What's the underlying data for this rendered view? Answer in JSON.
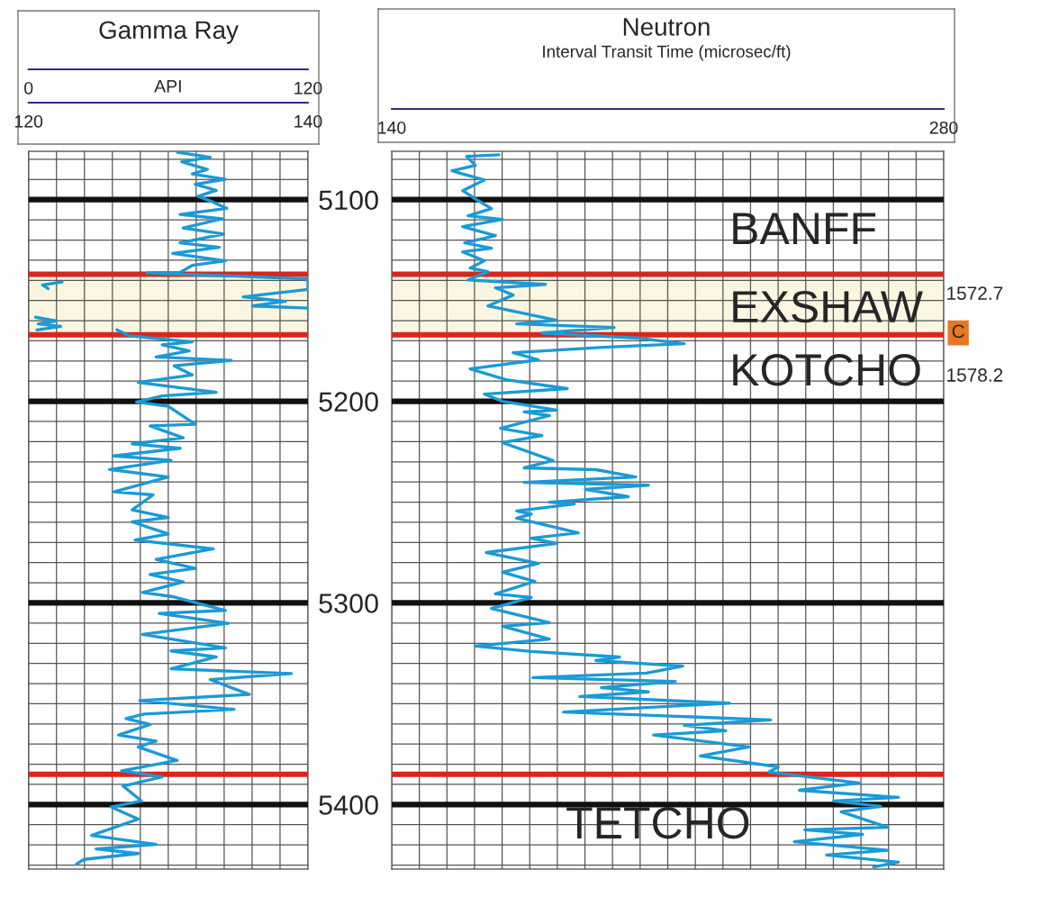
{
  "chart_data": [
    {
      "type": "line",
      "title": "Gamma Ray",
      "xlabel": "API",
      "xlim": [
        0,
        120
      ],
      "xticks": [
        0,
        {
          "value": 12,
          "label": null
        },
        {
          "value": 24,
          "label": null
        },
        {
          "value": 36,
          "label": null
        },
        {
          "value": 48,
          "label": null
        },
        {
          "value": 60,
          "label": null
        },
        {
          "value": 72,
          "label": null
        },
        {
          "value": 84,
          "label": null
        },
        {
          "value": 96,
          "label": null
        },
        {
          "value": 108,
          "label": null
        },
        120
      ],
      "x2lim": [
        120,
        140
      ],
      "x2ticks": [
        120,
        140
      ],
      "ylim": [
        5432,
        5076
      ],
      "yticks": [
        {
          "value": 5080,
          "label": null
        },
        {
          "value": 5090,
          "label": null
        },
        5100,
        {
          "value": 5110,
          "label": null
        },
        {
          "value": 5120,
          "label": null
        },
        {
          "value": 5130,
          "label": null
        },
        {
          "value": 5140,
          "label": null
        },
        {
          "value": 5150,
          "label": null
        },
        {
          "value": 5160,
          "label": null
        },
        {
          "value": 5170,
          "label": null
        },
        {
          "value": 5180,
          "label": null
        },
        {
          "value": 5190,
          "label": null
        },
        5200,
        {
          "value": 5210,
          "label": null
        },
        {
          "value": 5220,
          "label": null
        },
        {
          "value": 5230,
          "label": null
        },
        {
          "value": 5240,
          "label": null
        },
        {
          "value": 5250,
          "label": null
        },
        {
          "value": 5260,
          "label": null
        },
        {
          "value": 5270,
          "label": null
        },
        {
          "value": 5280,
          "label": null
        },
        {
          "value": 5290,
          "label": null
        },
        5300,
        {
          "value": 5310,
          "label": null
        },
        {
          "value": 5320,
          "label": null
        },
        {
          "value": 5330,
          "label": null
        },
        {
          "value": 5340,
          "label": null
        },
        {
          "value": 5350,
          "label": null
        },
        {
          "value": 5360,
          "label": null
        },
        {
          "value": 5370,
          "label": null
        },
        {
          "value": 5380,
          "label": null
        },
        {
          "value": 5390,
          "label": null
        },
        5400,
        {
          "value": 5410,
          "label": null
        },
        {
          "value": 5420,
          "label": null
        },
        {
          "value": 5430,
          "label": null
        }
      ],
      "grid": true,
      "line_style": "solid",
      "ref_lines": [
        {
          "axis": "y",
          "value": 5137,
          "color": "#d9261c"
        },
        {
          "axis": "y",
          "value": 5167,
          "color": "#d9261c"
        },
        {
          "axis": "y",
          "value": 5385,
          "color": "#d9261c"
        }
      ],
      "bands": [
        {
          "axis": "y",
          "from": 5137,
          "to": 5167,
          "color": "#faf6e1"
        }
      ],
      "series": [
        {
          "color": "#1a9ad6",
          "x": [
            64,
            78,
            65.8,
            76.8,
            70.3,
            84.5,
            71.6,
            80.6,
            72.9,
            78,
            85.1,
            65.1,
            83.2,
            66.4,
            83.8,
            65.1,
            81.9,
            61.9,
            84.5,
            70.3,
            65.1,
            50.9,
            120,
            120,
            92.2,
            110.3,
            96.1,
            120,
            null,
            38,
            43.2,
            70.3,
            57.4,
            69,
            54.8,
            87.1,
            62.5,
            70.3,
            47.1,
            80.6,
            57.4,
            46.4,
            60,
            71.6,
            52.2,
            66.4,
            44.5,
            65.1,
            36.7,
            61.2,
            34.8,
            60,
            36.7,
            53.5,
            44.5,
            60,
            44.5,
            60,
            45.8,
            79.3,
            54.8,
            71.6,
            52.2,
            66.4,
            49,
            62.5,
            84.5,
            56.1,
            85.8,
            49,
            84.5,
            61.2,
            80.6,
            61.2,
            112.9,
            78,
            94.8,
            47.7,
            88.3,
            49.6,
            41.9,
            52.2,
            38.7,
            54.8,
            47.1,
            63.8,
            40,
            57.4,
            40.6,
            48.4,
            35.4,
            47.1,
            27.1,
            54.8,
            29,
            47.1,
            23.8,
            20.6
          ],
          "values": [
            5076.5,
            5079,
            5081.2,
            5085,
            5087.2,
            5089.9,
            5092.4,
            5095.4,
            5098.3,
            5100.6,
            5104.3,
            5107.3,
            5109.5,
            5114,
            5117,
            5121.4,
            5123.6,
            5126.6,
            5130.3,
            5132.6,
            5136,
            5136.3,
            5139.3,
            5144.5,
            5148.2,
            5150.4,
            5152.7,
            5153.8,
            null,
            5164.6,
            5167.5,
            5170.5,
            5172,
            5175,
            5178,
            5179.7,
            5182.4,
            5186.9,
            5190.6,
            5195.5,
            5197.3,
            5200.3,
            5202.5,
            5211.4,
            5212.2,
            5218.1,
            5221.1,
            5223.3,
            5227.1,
            5229.3,
            5233.8,
            5237.5,
            5244.9,
            5246.4,
            5253.8,
            5257.6,
            5259.8,
            5265.8,
            5268.8,
            5273.2,
            5278.4,
            5282.9,
            5285.9,
            5289.6,
            5294.8,
            5297,
            5303.7,
            5305.2,
            5310.1,
            5315.6,
            5322.3,
            5323.8,
            5326.8,
            5332.7,
            5335,
            5338,
            5345.4,
            5348.4,
            5352.8,
            5355.1,
            5357.3,
            5360.3,
            5365.5,
            5368.5,
            5371.4,
            5378.1,
            5383.3,
            5386.3,
            5390.8,
            5398.2,
            5401.2,
            5407.2,
            5415.3,
            5419.8,
            5422,
            5424.3,
            5427.2,
            5429.5
          ]
        },
        {
          "color": "#1a9ad6",
          "axis": "x2",
          "x": [
            122.4,
            121,
            121.4,
            null,
            120.5,
            122,
            120.7,
            122.3,
            120.6
          ],
          "values": [
            5140.8,
            5142.3,
            5144.1,
            null,
            5158.3,
            5160.1,
            5161.6,
            5162.8,
            5164.6
          ]
        }
      ]
    },
    {
      "type": "line",
      "title": "Neutron",
      "subtitle": "Interval Transit Time (microsec/ft)",
      "xlim": [
        140,
        280
      ],
      "xticks": [
        140,
        {
          "value": 147,
          "label": null
        },
        {
          "value": 154,
          "label": null
        },
        {
          "value": 161,
          "label": null
        },
        {
          "value": 168,
          "label": null
        },
        {
          "value": 175,
          "label": null
        },
        {
          "value": 182,
          "label": null
        },
        {
          "value": 189,
          "label": null
        },
        {
          "value": 196,
          "label": null
        },
        {
          "value": 203,
          "label": null
        },
        {
          "value": 210,
          "label": null
        },
        {
          "value": 217,
          "label": null
        },
        {
          "value": 224,
          "label": null
        },
        {
          "value": 231,
          "label": null
        },
        {
          "value": 238,
          "label": null
        },
        {
          "value": 245,
          "label": null
        },
        {
          "value": 252,
          "label": null
        },
        {
          "value": 259,
          "label": null
        },
        {
          "value": 266,
          "label": null
        },
        {
          "value": 273,
          "label": null
        },
        280
      ],
      "ylim": [
        5432,
        5076
      ],
      "yticks": [
        {
          "value": 5080,
          "label": null
        },
        {
          "value": 5090,
          "label": null
        },
        5100,
        {
          "value": 5110,
          "label": null
        },
        {
          "value": 5120,
          "label": null
        },
        {
          "value": 5130,
          "label": null
        },
        {
          "value": 5140,
          "label": null
        },
        {
          "value": 5150,
          "label": null
        },
        {
          "value": 5160,
          "label": null
        },
        {
          "value": 5170,
          "label": null
        },
        {
          "value": 5180,
          "label": null
        },
        {
          "value": 5190,
          "label": null
        },
        5200,
        {
          "value": 5210,
          "label": null
        },
        {
          "value": 5220,
          "label": null
        },
        {
          "value": 5230,
          "label": null
        },
        {
          "value": 5240,
          "label": null
        },
        {
          "value": 5250,
          "label": null
        },
        {
          "value": 5260,
          "label": null
        },
        {
          "value": 5270,
          "label": null
        },
        {
          "value": 5280,
          "label": null
        },
        {
          "value": 5290,
          "label": null
        },
        5300,
        {
          "value": 5310,
          "label": null
        },
        {
          "value": 5320,
          "label": null
        },
        {
          "value": 5330,
          "label": null
        },
        {
          "value": 5340,
          "label": null
        },
        {
          "value": 5350,
          "label": null
        },
        {
          "value": 5360,
          "label": null
        },
        {
          "value": 5370,
          "label": null
        },
        {
          "value": 5380,
          "label": null
        },
        {
          "value": 5390,
          "label": null
        },
        5400,
        {
          "value": 5410,
          "label": null
        },
        {
          "value": 5420,
          "label": null
        },
        {
          "value": 5430,
          "label": null
        }
      ],
      "tick_labels": "x",
      "grid": true,
      "line_style": "solid",
      "ref_lines": [
        {
          "axis": "y",
          "value": 5137,
          "color": "#d9261c"
        },
        {
          "axis": "y",
          "value": 5167,
          "color": "#d9261c"
        },
        {
          "axis": "y",
          "value": 5385,
          "color": "#d9261c"
        }
      ],
      "bands": [
        {
          "axis": "y",
          "from": 5137,
          "to": 5167,
          "color": "#faf6e1"
        }
      ],
      "annotations": [
        "BANFF",
        "EXSHAW",
        "KOTCHO",
        "TETCHO",
        "1572.7",
        "C",
        "1578.2"
      ],
      "series": [
        {
          "color": "#1a9ad6",
          "x": [
            167.2,
            159,
            161.2,
            155.3,
            163.5,
            158,
            160.8,
            165.3,
            159.4,
            168.1,
            158,
            166.3,
            158.5,
            165.3,
            158,
            163.5,
            159.9,
            164.4,
            159.4,
            179,
            166.3,
            170.8,
            164.4,
            181.8,
            171.7,
            196.4,
            178.1,
            202.8,
            214.2,
            193.7,
            170.8,
            177.2,
            159.9,
            169,
            184.5,
            163.5,
            168.1,
            181.8,
            173.6,
            180,
            167.6,
            178.1,
            168.1,
            180.9,
            173.6,
            191.8,
            201.9,
            173.6,
            205.1,
            189.1,
            200,
            180,
            186.3,
            171.7,
            175.4,
            171.7,
            187.3,
            175.4,
            181.8,
            164,
            177.2,
            168.1,
            176.3,
            166.3,
            175.4,
            165.3,
            180,
            168.1,
            180,
            161.2,
            175.4,
            197.8,
            191.8,
            213.8,
            204.6,
            175.8,
            211.9,
            193.2,
            205.1,
            187.7,
            225.6,
            183.6,
            236.1,
            214.2,
            224.7,
            206.4,
            230.6,
            218.3,
            238,
            235.7,
            258.5,
            243.4,
            268.5,
            252.1,
            264,
            254,
            265.8,
            244.8,
            259.4,
            242.1,
            265.8,
            250.3,
            268.5,
            262.2
          ],
          "values": [
            5077.7,
            5078.5,
            5083,
            5085.7,
            5090.2,
            5095.5,
            5099.1,
            5104.4,
            5108,
            5109.8,
            5113.4,
            5117.8,
            5121.4,
            5124.1,
            5125.9,
            5130.3,
            5133.9,
            5135.7,
            5139.8,
            5142,
            5143.7,
            5147.3,
            5152.7,
            5159.8,
            5161.6,
            5163.4,
            5166.1,
            5168.7,
            5171.4,
            5173.2,
            5175.9,
            5179.4,
            5183.9,
            5189.3,
            5193.7,
            5196.4,
            5200,
            5204.4,
            5205.3,
            5207.1,
            5213.4,
            5217,
            5220.5,
            5229.4,
            5233,
            5233.9,
            5237.5,
            5240.2,
            5241.6,
            5243.7,
            5247.3,
            5250,
            5250.9,
            5254.4,
            5256,
            5258,
            5265.2,
            5267.9,
            5270.5,
            5275,
            5280.4,
            5284.8,
            5289.3,
            5295.5,
            5297.3,
            5302.7,
            5309.8,
            5311.6,
            5317.9,
            5321.4,
            5324.1,
            5326.8,
            5328.6,
            5331.3,
            5334.8,
            5337,
            5338.9,
            5342,
            5344.1,
            5346.4,
            5349.7,
            5354.1,
            5358,
            5360.7,
            5363.4,
            5365.5,
            5371.4,
            5375.9,
            5381.3,
            5383.9,
            5389.3,
            5392.9,
            5396.4,
            5398.2,
            5400.9,
            5403.6,
            5411.3,
            5412.5,
            5414.8,
            5418.4,
            5422.7,
            5425,
            5428.6,
            5430.9
          ]
        }
      ]
    }
  ]
}
